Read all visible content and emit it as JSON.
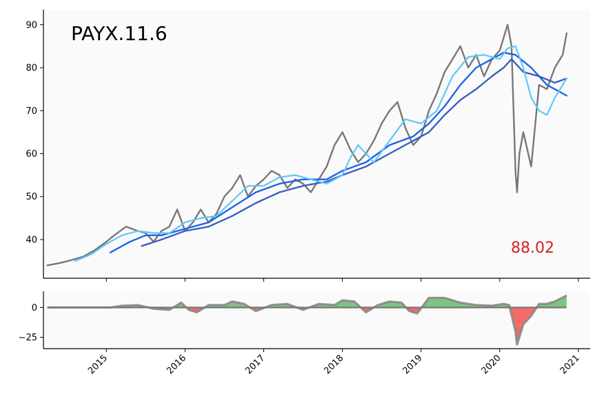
{
  "chart_data": [
    {
      "type": "line",
      "title": "PAYX.11.6",
      "last_price_label": "88.02",
      "x_ticks": [
        "2015",
        "2016",
        "2017",
        "2018",
        "2019",
        "2020",
        "2021"
      ],
      "xlim": [
        2014.2,
        2021.15
      ],
      "ylim": [
        31,
        93.5
      ],
      "y_ticks": [
        40,
        50,
        60,
        70,
        80,
        90
      ],
      "grid": false,
      "colors": {
        "price": "#777777",
        "ma_fast": "#5ac8fa",
        "ma_mid": "#1e63e6",
        "ma_slow": "#3a5fbf",
        "last_price": "#d62020",
        "background": "#fafafa"
      },
      "series": [
        {
          "x": [
            2014.25,
            2014.4,
            2014.55,
            2014.7,
            2014.85,
            2015.0,
            2015.1,
            2015.25,
            2015.4,
            2015.5,
            2015.6,
            2015.7,
            2015.8,
            2015.9,
            2016.0,
            2016.1,
            2016.2,
            2016.3,
            2016.4,
            2016.5,
            2016.6,
            2016.7,
            2016.8,
            2016.9,
            2017.0,
            2017.1,
            2017.2,
            2017.3,
            2017.4,
            2017.5,
            2017.6,
            2017.7,
            2017.8,
            2017.9,
            2018.0,
            2018.1,
            2018.2,
            2018.3,
            2018.4,
            2018.5,
            2018.6,
            2018.7,
            2018.8,
            2018.9,
            2019.0,
            2019.1,
            2019.2,
            2019.3,
            2019.4,
            2019.5,
            2019.6,
            2019.7,
            2019.8,
            2019.9,
            2020.0,
            2020.1,
            2020.15,
            2020.2,
            2020.22,
            2020.25,
            2020.3,
            2020.4,
            2020.5,
            2020.6,
            2020.7,
            2020.8,
            2020.85
          ],
          "values": [
            34,
            34.5,
            35.2,
            36,
            37.5,
            39.5,
            41,
            43,
            42,
            41.5,
            39.5,
            42,
            43,
            47,
            42,
            44,
            47,
            44,
            46,
            50,
            52,
            55,
            50,
            52.5,
            54,
            56,
            55,
            52,
            54,
            53,
            51,
            54,
            57,
            62,
            65,
            61,
            58,
            60,
            63,
            67,
            70,
            72,
            66,
            62,
            64,
            70,
            74,
            79,
            82,
            85,
            80,
            83,
            78,
            82,
            84,
            90,
            85,
            56,
            51,
            60,
            65,
            57,
            76,
            75,
            80,
            83,
            88
          ]
        },
        {
          "x": [
            2014.6,
            2014.8,
            2015.0,
            2015.2,
            2015.4,
            2015.6,
            2015.8,
            2016.0,
            2016.2,
            2016.4,
            2016.6,
            2016.8,
            2017.0,
            2017.2,
            2017.4,
            2017.6,
            2017.8,
            2018.0,
            2018.1,
            2018.2,
            2018.4,
            2018.6,
            2018.8,
            2019.0,
            2019.2,
            2019.4,
            2019.6,
            2019.8,
            2020.0,
            2020.1,
            2020.2,
            2020.3,
            2020.4,
            2020.5,
            2020.6,
            2020.7,
            2020.85
          ],
          "values": [
            35,
            36.5,
            39,
            41,
            42,
            41.5,
            41.5,
            44,
            45,
            45.5,
            49,
            52.5,
            52.5,
            54.5,
            55,
            54,
            53,
            55,
            59,
            62,
            58,
            63,
            68,
            67,
            70,
            78,
            82.5,
            83,
            82,
            84.5,
            85,
            80,
            73,
            70,
            69,
            73,
            77.5
          ]
        },
        {
          "x": [
            2015.05,
            2015.3,
            2015.5,
            2015.7,
            2016.0,
            2016.3,
            2016.6,
            2016.9,
            2017.2,
            2017.5,
            2017.8,
            2018.0,
            2018.3,
            2018.6,
            2018.9,
            2019.1,
            2019.3,
            2019.5,
            2019.7,
            2019.9,
            2020.05,
            2020.2,
            2020.4,
            2020.6,
            2020.85
          ],
          "values": [
            37,
            39.5,
            41,
            41,
            42.5,
            44,
            47.5,
            51,
            53,
            54,
            54,
            56,
            58,
            62,
            64,
            67,
            71,
            76,
            80,
            82,
            83.5,
            83,
            80,
            76,
            73.5
          ]
        },
        {
          "x": [
            2015.45,
            2015.7,
            2016.0,
            2016.3,
            2016.6,
            2016.9,
            2017.2,
            2017.5,
            2017.8,
            2018.0,
            2018.3,
            2018.6,
            2018.9,
            2019.1,
            2019.3,
            2019.5,
            2019.7,
            2019.9,
            2020.05,
            2020.15,
            2020.3,
            2020.5,
            2020.7,
            2020.85
          ],
          "values": [
            38.5,
            40,
            42,
            43,
            45.5,
            48.5,
            51,
            52.5,
            53.5,
            55,
            57,
            60,
            63,
            65,
            69,
            72.5,
            75,
            78,
            80,
            82,
            79,
            78,
            76.5,
            77.5
          ]
        }
      ]
    },
    {
      "type": "area",
      "xlim": [
        2014.2,
        2021.15
      ],
      "ylim": [
        -34.5,
        13.5
      ],
      "y_ticks": [
        0,
        -25
      ],
      "y_tick_labels": [
        "0",
        "−25"
      ],
      "x_ticks": [
        "2015",
        "2016",
        "2017",
        "2018",
        "2019",
        "2020",
        "2021"
      ],
      "colors": {
        "positive": "#7fc47f",
        "negative": "#f36b6b",
        "line": "#888888",
        "zero": "#777777"
      },
      "series": [
        {
          "x": [
            2014.25,
            2015.05,
            2015.2,
            2015.4,
            2015.6,
            2015.8,
            2015.95,
            2016.05,
            2016.15,
            2016.3,
            2016.5,
            2016.6,
            2016.75,
            2016.9,
            2017.1,
            2017.3,
            2017.5,
            2017.7,
            2017.9,
            2018.0,
            2018.15,
            2018.3,
            2018.45,
            2018.6,
            2018.75,
            2018.85,
            2018.95,
            2019.1,
            2019.3,
            2019.5,
            2019.7,
            2019.9,
            2020.05,
            2020.12,
            2020.2,
            2020.22,
            2020.3,
            2020.4,
            2020.5,
            2020.6,
            2020.7,
            2020.85
          ],
          "values": [
            0,
            0,
            1.5,
            2,
            -1,
            -2,
            4,
            -2,
            -4,
            2,
            2,
            5,
            3,
            -3,
            2,
            3,
            -2,
            3,
            2,
            6,
            5,
            -4,
            2,
            5,
            4,
            -3,
            -5,
            8,
            8,
            4,
            2,
            1.5,
            3,
            2,
            -20,
            -31,
            -14,
            -7,
            3,
            3,
            5,
            10
          ]
        }
      ]
    }
  ]
}
